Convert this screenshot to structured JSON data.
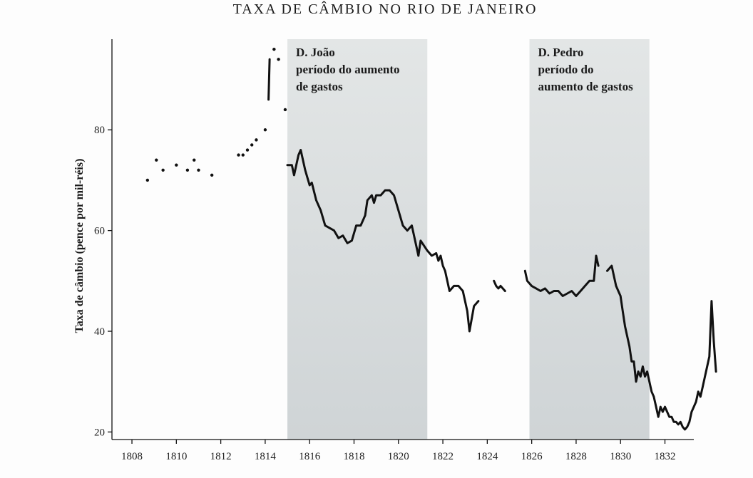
{
  "chart_data": {
    "type": "line",
    "title": "TAXA DE CÂMBIO NO RIO DE JANEIRO",
    "xlabel": "",
    "ylabel": "Taxa de câmbio (pence por mil-réis)",
    "xlim": [
      1807.1,
      1833.3
    ],
    "ylim": [
      18.5,
      98
    ],
    "x_ticks": [
      1808,
      1810,
      1812,
      1814,
      1816,
      1818,
      1820,
      1822,
      1824,
      1826,
      1828,
      1830,
      1832
    ],
    "y_ticks": [
      20,
      40,
      60,
      80
    ],
    "grid": false,
    "shaded_periods": [
      {
        "start": 1815.0,
        "end": 1821.3,
        "label": "D. João\nperíodo do aumento\nde gastos"
      },
      {
        "start": 1825.9,
        "end": 1831.3,
        "label": "D. Pedro\nperíodo do\naumento de gastos"
      }
    ],
    "points": [
      {
        "x": 1808.7,
        "y": 70
      },
      {
        "x": 1809.1,
        "y": 74
      },
      {
        "x": 1809.4,
        "y": 72
      },
      {
        "x": 1810.0,
        "y": 73
      },
      {
        "x": 1810.5,
        "y": 72
      },
      {
        "x": 1810.8,
        "y": 74
      },
      {
        "x": 1811.0,
        "y": 72
      },
      {
        "x": 1811.6,
        "y": 71
      },
      {
        "x": 1812.8,
        "y": 75
      },
      {
        "x": 1813.0,
        "y": 75
      },
      {
        "x": 1813.2,
        "y": 76
      },
      {
        "x": 1813.4,
        "y": 77
      },
      {
        "x": 1813.6,
        "y": 78
      },
      {
        "x": 1814.0,
        "y": 80
      },
      {
        "x": 1814.4,
        "y": 96
      },
      {
        "x": 1814.6,
        "y": 94
      },
      {
        "x": 1814.9,
        "y": 84
      }
    ],
    "series": [
      {
        "values": [
          [
            1814.15,
            86
          ],
          [
            1814.2,
            94
          ]
        ]
      },
      {
        "values": [
          [
            1815.0,
            73
          ],
          [
            1815.2,
            73
          ],
          [
            1815.3,
            71
          ],
          [
            1815.5,
            75
          ],
          [
            1815.6,
            76
          ],
          [
            1815.8,
            72
          ],
          [
            1816.0,
            69
          ],
          [
            1816.1,
            69.5
          ],
          [
            1816.3,
            66
          ],
          [
            1816.5,
            64
          ],
          [
            1816.7,
            61
          ],
          [
            1816.9,
            60.5
          ],
          [
            1817.1,
            60
          ],
          [
            1817.3,
            58.5
          ],
          [
            1817.5,
            59
          ],
          [
            1817.7,
            57.5
          ],
          [
            1817.9,
            58
          ],
          [
            1818.1,
            61
          ],
          [
            1818.3,
            61
          ],
          [
            1818.5,
            63
          ],
          [
            1818.6,
            66
          ],
          [
            1818.8,
            67
          ],
          [
            1818.9,
            65.5
          ],
          [
            1819.0,
            67
          ],
          [
            1819.2,
            67
          ],
          [
            1819.4,
            68
          ],
          [
            1819.6,
            68
          ],
          [
            1819.8,
            67
          ],
          [
            1820.0,
            64
          ],
          [
            1820.2,
            61
          ],
          [
            1820.4,
            60
          ],
          [
            1820.6,
            61
          ],
          [
            1820.8,
            57
          ],
          [
            1820.9,
            55
          ],
          [
            1821.0,
            58
          ],
          [
            1821.3,
            56
          ],
          [
            1821.5,
            55
          ],
          [
            1821.7,
            55.5
          ],
          [
            1821.8,
            54
          ],
          [
            1821.9,
            55
          ],
          [
            1822.0,
            53
          ],
          [
            1822.1,
            52
          ],
          [
            1822.2,
            50
          ],
          [
            1822.3,
            48
          ],
          [
            1822.5,
            49
          ],
          [
            1822.7,
            49
          ],
          [
            1822.9,
            48
          ],
          [
            1823.1,
            44
          ],
          [
            1823.2,
            40
          ],
          [
            1823.4,
            45
          ],
          [
            1823.6,
            46
          ]
        ]
      },
      {
        "values": [
          [
            1824.3,
            50
          ],
          [
            1824.4,
            49
          ],
          [
            1824.5,
            48.5
          ],
          [
            1824.6,
            49
          ],
          [
            1824.8,
            48
          ]
        ]
      },
      {
        "values": [
          [
            1825.7,
            52
          ],
          [
            1825.8,
            50
          ],
          [
            1826.0,
            49
          ],
          [
            1826.2,
            48.5
          ],
          [
            1826.4,
            48
          ],
          [
            1826.6,
            48.5
          ],
          [
            1826.8,
            47.5
          ],
          [
            1827.0,
            48
          ],
          [
            1827.2,
            48
          ],
          [
            1827.4,
            47
          ],
          [
            1827.6,
            47.5
          ],
          [
            1827.8,
            48
          ],
          [
            1828.0,
            47
          ],
          [
            1828.2,
            48
          ],
          [
            1828.4,
            49
          ],
          [
            1828.6,
            50
          ],
          [
            1828.8,
            50
          ],
          [
            1828.9,
            55
          ],
          [
            1829.0,
            53
          ]
        ]
      },
      {
        "values": [
          [
            1829.4,
            52
          ],
          [
            1829.6,
            53
          ],
          [
            1829.7,
            51
          ],
          [
            1829.8,
            49
          ],
          [
            1829.9,
            48
          ],
          [
            1830.0,
            47
          ],
          [
            1830.1,
            44
          ],
          [
            1830.2,
            41
          ],
          [
            1830.3,
            39
          ],
          [
            1830.4,
            37
          ],
          [
            1830.5,
            34
          ],
          [
            1830.6,
            34
          ],
          [
            1830.7,
            30
          ],
          [
            1830.8,
            32
          ],
          [
            1830.9,
            31
          ],
          [
            1831.0,
            33
          ],
          [
            1831.1,
            31
          ],
          [
            1831.2,
            32
          ],
          [
            1831.3,
            30
          ],
          [
            1831.4,
            28
          ],
          [
            1831.5,
            27
          ],
          [
            1831.6,
            25
          ],
          [
            1831.7,
            23
          ],
          [
            1831.8,
            25
          ],
          [
            1831.9,
            24
          ],
          [
            1832.0,
            25
          ],
          [
            1832.1,
            24
          ],
          [
            1832.2,
            23
          ],
          [
            1832.3,
            23
          ],
          [
            1832.4,
            22
          ],
          [
            1832.5,
            22
          ],
          [
            1832.6,
            21.5
          ],
          [
            1832.7,
            22
          ],
          [
            1832.8,
            21
          ],
          [
            1832.9,
            20.5
          ],
          [
            1833.0,
            21
          ],
          [
            1833.1,
            22
          ],
          [
            1833.2,
            24
          ],
          [
            1833.3,
            25
          ],
          [
            1833.4,
            26
          ],
          [
            1833.5,
            28
          ],
          [
            1833.6,
            27
          ],
          [
            1833.7,
            29
          ],
          [
            1833.8,
            31
          ],
          [
            1833.9,
            33
          ],
          [
            1834.0,
            35
          ],
          [
            1834.1,
            46
          ],
          [
            1834.2,
            38
          ],
          [
            1834.3,
            32
          ]
        ]
      }
    ]
  }
}
